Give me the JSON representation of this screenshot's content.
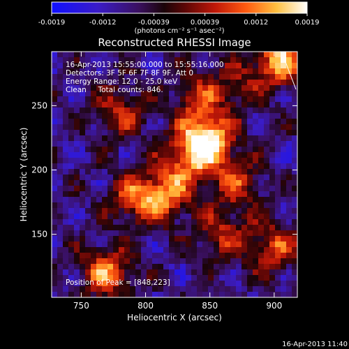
{
  "chart_data": {
    "type": "heatmap",
    "title": "Reconstructed RHESSI Image",
    "xlabel": "Heliocentric X (arcsec)",
    "ylabel": "Heliocentric Y (arcsec)",
    "xlim": [
      727,
      918
    ],
    "ylim": [
      101,
      292
    ],
    "x_ticks": [
      750,
      800,
      850,
      900
    ],
    "y_ticks": [
      150,
      200,
      250
    ],
    "peak": [
      848,
      223
    ],
    "colorbar": {
      "ticks": [
        "-0.0019",
        "-0.0012",
        "-0.00039",
        "0.00039",
        "0.0012",
        "0.0019"
      ],
      "range": [
        -0.0019,
        0.0019
      ],
      "label": "(photons cm⁻² s⁻¹ asec⁻²)"
    },
    "annotations": {
      "time": "16-Apr-2013 15:55:00.000 to 15:55:16.000",
      "detectors": "Detectors: 3F 5F 6F 7F 8F 9F, Att 0",
      "energy": "Energy Range: 12.0 - 25.0 keV",
      "clean": "Clean     Total counts: 846.",
      "peak_text": "Position of Peak = [848,223]"
    },
    "sources": [
      {
        "x": 848,
        "y": 223,
        "amp": 1.0
      },
      {
        "x": 832,
        "y": 208,
        "amp": 0.55
      },
      {
        "x": 815,
        "y": 180,
        "amp": 0.65
      },
      {
        "x": 792,
        "y": 178,
        "amp": 0.55
      },
      {
        "x": 870,
        "y": 190,
        "amp": 0.5
      },
      {
        "x": 770,
        "y": 120,
        "amp": 0.7
      },
      {
        "x": 905,
        "y": 285,
        "amp": 0.85
      },
      {
        "x": 900,
        "y": 140,
        "amp": 0.55
      },
      {
        "x": 860,
        "y": 150,
        "amp": 0.45
      },
      {
        "x": 780,
        "y": 245,
        "amp": 0.45
      },
      {
        "x": 840,
        "y": 255,
        "amp": 0.45
      },
      {
        "x": 870,
        "y": 265,
        "amp": 0.35
      }
    ]
  },
  "footer": {
    "timestamp": "16-Apr-2013 11:40"
  }
}
